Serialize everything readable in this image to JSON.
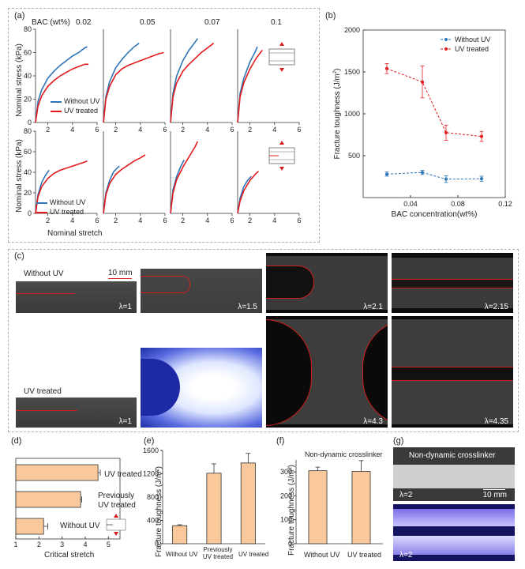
{
  "colors": {
    "without_uv": "#2e75b6",
    "uv_treated": "#e31a1c",
    "bar_fill": "#f9c89b",
    "bar_stroke": "#333333",
    "outline_red": "#d11f1f"
  },
  "panel_a": {
    "label": "(a)",
    "bac_header": "BAC (wt%)",
    "concentrations": [
      "0.02",
      "0.05",
      "0.07",
      "0.1"
    ],
    "ylabel": "Nominal stress (kPa)",
    "xlabel": "Nominal stretch",
    "yticks": [
      "0",
      "20",
      "40",
      "60",
      "80"
    ],
    "xticks": [
      "2",
      "4",
      "6"
    ],
    "legend": [
      "Without UV",
      "UV treated"
    ]
  },
  "panel_b": {
    "label": "(b)"
  },
  "panel_c": {
    "label": "(c)",
    "row1_label": "Without UV",
    "row2_label": "UV treated",
    "scale_label": "10 mm",
    "row1_stretch": [
      "λ=1",
      "λ=1.5",
      "λ=2.1",
      "λ=2.15"
    ],
    "row2_stretch": [
      "λ=1",
      "λ=4.3",
      "λ=4.35"
    ]
  },
  "panel_d": {
    "label": "(d)"
  },
  "panel_e": {
    "label": "(e)"
  },
  "panel_f": {
    "label": "(f)"
  },
  "panel_g": {
    "label": "(g)",
    "title": "Non-dynamic crosslinker",
    "stretch_top": "λ=2",
    "stretch_bottom": "λ=2",
    "scale_label": "10 mm"
  },
  "chart_data": [
    {
      "id": "a-top",
      "type": "line",
      "title": "",
      "xlabel": "",
      "ylabel": "Nominal stress (kPa)",
      "xlim": [
        1,
        6
      ],
      "ylim": [
        0,
        80
      ],
      "subplots": [
        {
          "bac": "0.02",
          "series": [
            {
              "name": "Without UV",
              "x": [
                1,
                1.2,
                1.5,
                2,
                2.5,
                3,
                3.5,
                4,
                4.5,
                5,
                5.2
              ],
              "y": [
                0,
                18,
                28,
                38,
                44,
                49,
                53,
                57,
                60,
                64,
                65
              ]
            },
            {
              "name": "UV treated",
              "x": [
                1,
                1.2,
                1.5,
                2,
                2.5,
                3,
                3.5,
                4,
                4.5,
                5,
                5.3
              ],
              "y": [
                0,
                14,
                23,
                31,
                36,
                40,
                43,
                46,
                48,
                50,
                50
              ]
            }
          ]
        },
        {
          "bac": "0.05",
          "series": [
            {
              "name": "Without UV",
              "x": [
                1,
                1.2,
                1.5,
                2,
                2.5,
                3,
                3.5,
                3.9
              ],
              "y": [
                0,
                22,
                35,
                47,
                54,
                60,
                65,
                68
              ]
            },
            {
              "name": "UV treated",
              "x": [
                1,
                1.2,
                1.5,
                2,
                2.5,
                3,
                3.5,
                4,
                4.5,
                5,
                5.5,
                5.9
              ],
              "y": [
                0,
                20,
                31,
                41,
                46,
                49,
                51,
                53,
                55,
                57,
                59,
                60
              ]
            }
          ]
        },
        {
          "bac": "0.07",
          "series": [
            {
              "name": "Without UV",
              "x": [
                1,
                1.2,
                1.5,
                2,
                2.5,
                3,
                3.2
              ],
              "y": [
                0,
                25,
                40,
                53,
                62,
                69,
                72
              ]
            },
            {
              "name": "UV treated",
              "x": [
                1,
                1.2,
                1.5,
                2,
                2.5,
                3,
                3.5,
                4,
                4.5
              ],
              "y": [
                0,
                22,
                34,
                44,
                50,
                55,
                60,
                64,
                68
              ]
            }
          ]
        },
        {
          "bac": "0.1",
          "series": [
            {
              "name": "Without UV",
              "x": [
                1,
                1.2,
                1.5,
                2,
                2.4,
                2.6
              ],
              "y": [
                0,
                25,
                38,
                52,
                60,
                65
              ]
            },
            {
              "name": "UV treated",
              "x": [
                1,
                1.2,
                1.5,
                2,
                2.5,
                3
              ],
              "y": [
                0,
                22,
                34,
                46,
                55,
                62
              ]
            }
          ]
        }
      ]
    },
    {
      "id": "a-bottom",
      "type": "line",
      "xlabel": "Nominal stretch",
      "ylabel": "Nominal stress (kPa)",
      "xlim": [
        1,
        6
      ],
      "ylim": [
        0,
        80
      ],
      "subplots": [
        {
          "bac": "0.02",
          "series": [
            {
              "name": "Without UV",
              "x": [
                1,
                1.2,
                1.5,
                1.8,
                2.1
              ],
              "y": [
                0,
                18,
                30,
                37,
                42
              ]
            },
            {
              "name": "UV treated",
              "x": [
                1,
                1.2,
                1.5,
                2,
                2.5,
                3,
                3.5,
                4,
                4.5,
                5,
                5.2
              ],
              "y": [
                0,
                16,
                26,
                34,
                39,
                42,
                44,
                46,
                48,
                50,
                51
              ]
            }
          ]
        },
        {
          "bac": "0.05",
          "series": [
            {
              "name": "Without UV",
              "x": [
                1,
                1.2,
                1.5,
                1.8,
                2.1,
                2.3
              ],
              "y": [
                0,
                20,
                32,
                40,
                44,
                46
              ]
            },
            {
              "name": "UV treated",
              "x": [
                1,
                1.2,
                1.5,
                2,
                2.5,
                3,
                3.5,
                4,
                4.4
              ],
              "y": [
                0,
                18,
                29,
                38,
                43,
                47,
                51,
                54,
                57
              ]
            }
          ]
        },
        {
          "bac": "0.07",
          "series": [
            {
              "name": "Without UV",
              "x": [
                1,
                1.2,
                1.5,
                1.8,
                2.1
              ],
              "y": [
                0,
                23,
                36,
                45,
                52
              ]
            },
            {
              "name": "UV treated",
              "x": [
                1,
                1.2,
                1.5,
                2,
                2.5,
                3,
                3.2
              ],
              "y": [
                0,
                20,
                33,
                45,
                55,
                65,
                70
              ]
            }
          ]
        },
        {
          "bac": "0.1",
          "series": [
            {
              "name": "Without UV",
              "x": [
                1,
                1.2,
                1.5,
                1.8,
                2.1
              ],
              "y": [
                0,
                15,
                26,
                32,
                36
              ]
            },
            {
              "name": "UV treated",
              "x": [
                1,
                1.2,
                1.5,
                2,
                2.5,
                2.7
              ],
              "y": [
                0,
                12,
                22,
                32,
                39,
                41
              ]
            }
          ]
        }
      ]
    },
    {
      "id": "b",
      "type": "scatter",
      "xlabel": "BAC concentration(wt%)",
      "ylabel": "Fracture toughness (J/m²)",
      "xlim": [
        0,
        0.12
      ],
      "ylim": [
        0,
        2000
      ],
      "xticks": [
        "0.04",
        "0.08",
        "0.12"
      ],
      "yticks": [
        "500",
        "1000",
        "1500",
        "2000"
      ],
      "x": [
        0.02,
        0.05,
        0.07,
        0.1
      ],
      "series": [
        {
          "name": "Without UV",
          "y": [
            280,
            300,
            220,
            225
          ],
          "err": [
            25,
            25,
            40,
            30
          ]
        },
        {
          "name": "UV treated",
          "y": [
            1540,
            1380,
            775,
            730
          ],
          "err": [
            60,
            190,
            90,
            60
          ]
        }
      ],
      "legend_position": "top-right"
    },
    {
      "id": "d",
      "type": "bar",
      "orientation": "horizontal",
      "xlabel": "Critical stretch",
      "xlim": [
        1,
        5.5
      ],
      "xticks": [
        "1",
        "2",
        "3",
        "4",
        "5"
      ],
      "categories": [
        "UV treated",
        "Previously UV treated",
        "Without UV"
      ],
      "values": [
        4.55,
        3.8,
        2.2
      ],
      "err": [
        0.1,
        0.05,
        0.18
      ]
    },
    {
      "id": "e",
      "type": "bar",
      "ylabel": "Fracture toughness (J/m²)",
      "ylim": [
        0,
        1600
      ],
      "yticks": [
        "0",
        "400",
        "800",
        "1200",
        "1600"
      ],
      "categories": [
        "Without UV",
        "Previously UV treated",
        "UV treated"
      ],
      "values": [
        310,
        1210,
        1385
      ],
      "err": [
        15,
        160,
        165
      ]
    },
    {
      "id": "f",
      "type": "bar",
      "title": "Non-dynamic crosslinker",
      "ylabel": "Fracture toughness (J/m²)",
      "ylim": [
        0,
        350
      ],
      "yticks": [
        "0",
        "100",
        "200",
        "300"
      ],
      "categories": [
        "Without UV",
        "UV treated"
      ],
      "values": [
        305,
        302
      ],
      "err": [
        15,
        45
      ]
    }
  ]
}
